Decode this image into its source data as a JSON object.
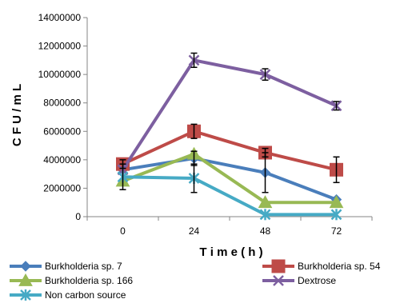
{
  "chart_data": {
    "type": "line",
    "title": "",
    "xlabel": "T i m e ( h )",
    "ylabel": "C F U / m L",
    "categories": [
      "0",
      "24",
      "48",
      "72"
    ],
    "ylim": [
      0,
      14000000
    ],
    "yticks": [
      0,
      2000000,
      4000000,
      6000000,
      8000000,
      10000000,
      12000000,
      14000000
    ],
    "ytick_labels": [
      "0",
      "2000000",
      "4000000",
      "6000000",
      "8000000",
      "10000000",
      "12000000",
      "14000000"
    ],
    "grid": false,
    "legend_position": "bottom",
    "series": [
      {
        "name": "Burkholderia sp. 7",
        "color": "#4a7ebb",
        "marker": "diamond",
        "values": [
          3300000,
          4100000,
          3100000,
          1200000
        ],
        "errors": [
          0,
          500000,
          1400000,
          0
        ]
      },
      {
        "name": "Burkholderia sp. 54",
        "color": "#be4b48",
        "marker": "square",
        "values": [
          3700000,
          6000000,
          4500000,
          3300000
        ],
        "errors": [
          300000,
          500000,
          300000,
          900000
        ]
      },
      {
        "name": "Burkholderia sp. 166",
        "color": "#98b954",
        "marker": "triangle",
        "values": [
          2500000,
          4400000,
          1000000,
          1000000
        ],
        "errors": [
          0,
          0,
          0,
          0
        ]
      },
      {
        "name": "Dextrose",
        "color": "#7d5fa0",
        "marker": "x",
        "values": [
          3300000,
          11000000,
          10000000,
          7800000
        ],
        "errors": [
          0,
          500000,
          400000,
          300000
        ]
      },
      {
        "name": "Non carbon source",
        "color": "#46aac5",
        "marker": "star",
        "values": [
          2800000,
          2700000,
          150000,
          150000
        ],
        "errors": [
          900000,
          1000000,
          0,
          0
        ]
      }
    ]
  }
}
